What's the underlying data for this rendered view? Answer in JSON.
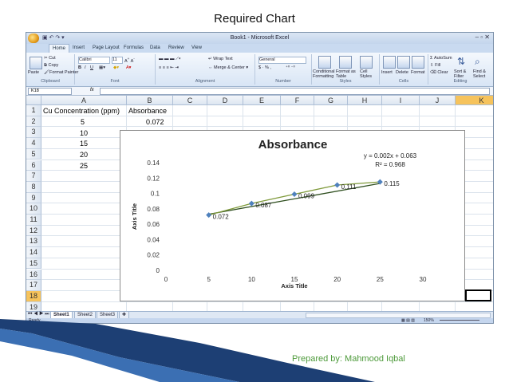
{
  "slide": {
    "title": "Required Chart",
    "footer": "Prepared by: Mahmood Iqbal"
  },
  "excel": {
    "window_title": "Book1 - Microsoft Excel",
    "tabs": [
      "Home",
      "Insert",
      "Page Layout",
      "Formulas",
      "Data",
      "Review",
      "View"
    ],
    "ribbon": {
      "clipboard": {
        "paste": "Paste",
        "cut": "Cut",
        "copy": "Copy",
        "format_painter": "Format Painter",
        "label": "Clipboard"
      },
      "font": {
        "name": "Calibri",
        "size": "11",
        "label": "Font"
      },
      "alignment": {
        "wrap": "Wrap Text",
        "merge": "Merge & Center",
        "label": "Alignment"
      },
      "number": {
        "format": "General",
        "symbols": "$ · % ,",
        "label": "Number"
      },
      "styles": {
        "conditional": "Conditional Formatting",
        "format_table": "Format as Table",
        "cell_styles": "Cell Styles",
        "label": "Styles"
      },
      "cells": {
        "insert": "Insert",
        "delete": "Delete",
        "format": "Format",
        "label": "Cells"
      },
      "editing": {
        "autosum": "AutoSum",
        "fill": "Fill",
        "clear": "Clear",
        "sort": "Sort & Filter",
        "find": "Find & Select",
        "label": "Editing"
      }
    },
    "name_box": "K18",
    "formula_label": "fx",
    "columns": [
      "A",
      "B",
      "C",
      "D",
      "E",
      "F",
      "G",
      "H",
      "I",
      "J",
      "K"
    ],
    "rows": [
      "1",
      "2",
      "3",
      "4",
      "5",
      "6",
      "7",
      "8",
      "9",
      "10",
      "11",
      "12",
      "13",
      "14",
      "15",
      "16",
      "17",
      "18",
      "19"
    ],
    "selected_column": "K",
    "selected_row": "18",
    "cells": {
      "a1": "Cu Concentration (ppm)",
      "b1": "Absorbance",
      "a2": "5",
      "b2": "0.072",
      "a3": "10",
      "a4": "15",
      "a5": "20",
      "a6": "25"
    },
    "sheets": [
      "Sheet1",
      "Sheet2",
      "Sheet3"
    ],
    "active_sheet": "Sheet1",
    "status": "Ready",
    "zoom": "150%"
  },
  "chart_data": {
    "type": "scatter",
    "title": "Absorbance",
    "xlabel": "Axis Title",
    "ylabel": "Axis Title",
    "x": [
      5,
      10,
      15,
      20,
      25
    ],
    "y": [
      0.072,
      0.087,
      0.099,
      0.111,
      0.115
    ],
    "data_labels": [
      "0.072",
      "0.087",
      "0.099",
      "0.111",
      "0.115"
    ],
    "trendline": {
      "equation": "y = 0.002x + 0.063",
      "r2": "R² = 0.968",
      "slope": 0.002,
      "intercept": 0.063
    },
    "xlim": [
      0,
      30
    ],
    "ylim": [
      0,
      0.14
    ],
    "x_ticks": [
      "0",
      "5",
      "10",
      "15",
      "20",
      "25",
      "30"
    ],
    "y_ticks": [
      "0",
      "0.02",
      "0.04",
      "0.06",
      "0.08",
      "0.1",
      "0.12",
      "0.14"
    ],
    "grid": false,
    "legend": "none",
    "colors": {
      "series": "#4f81bd",
      "line": "#7f9a3b",
      "trend": "#2e4e1e"
    }
  }
}
